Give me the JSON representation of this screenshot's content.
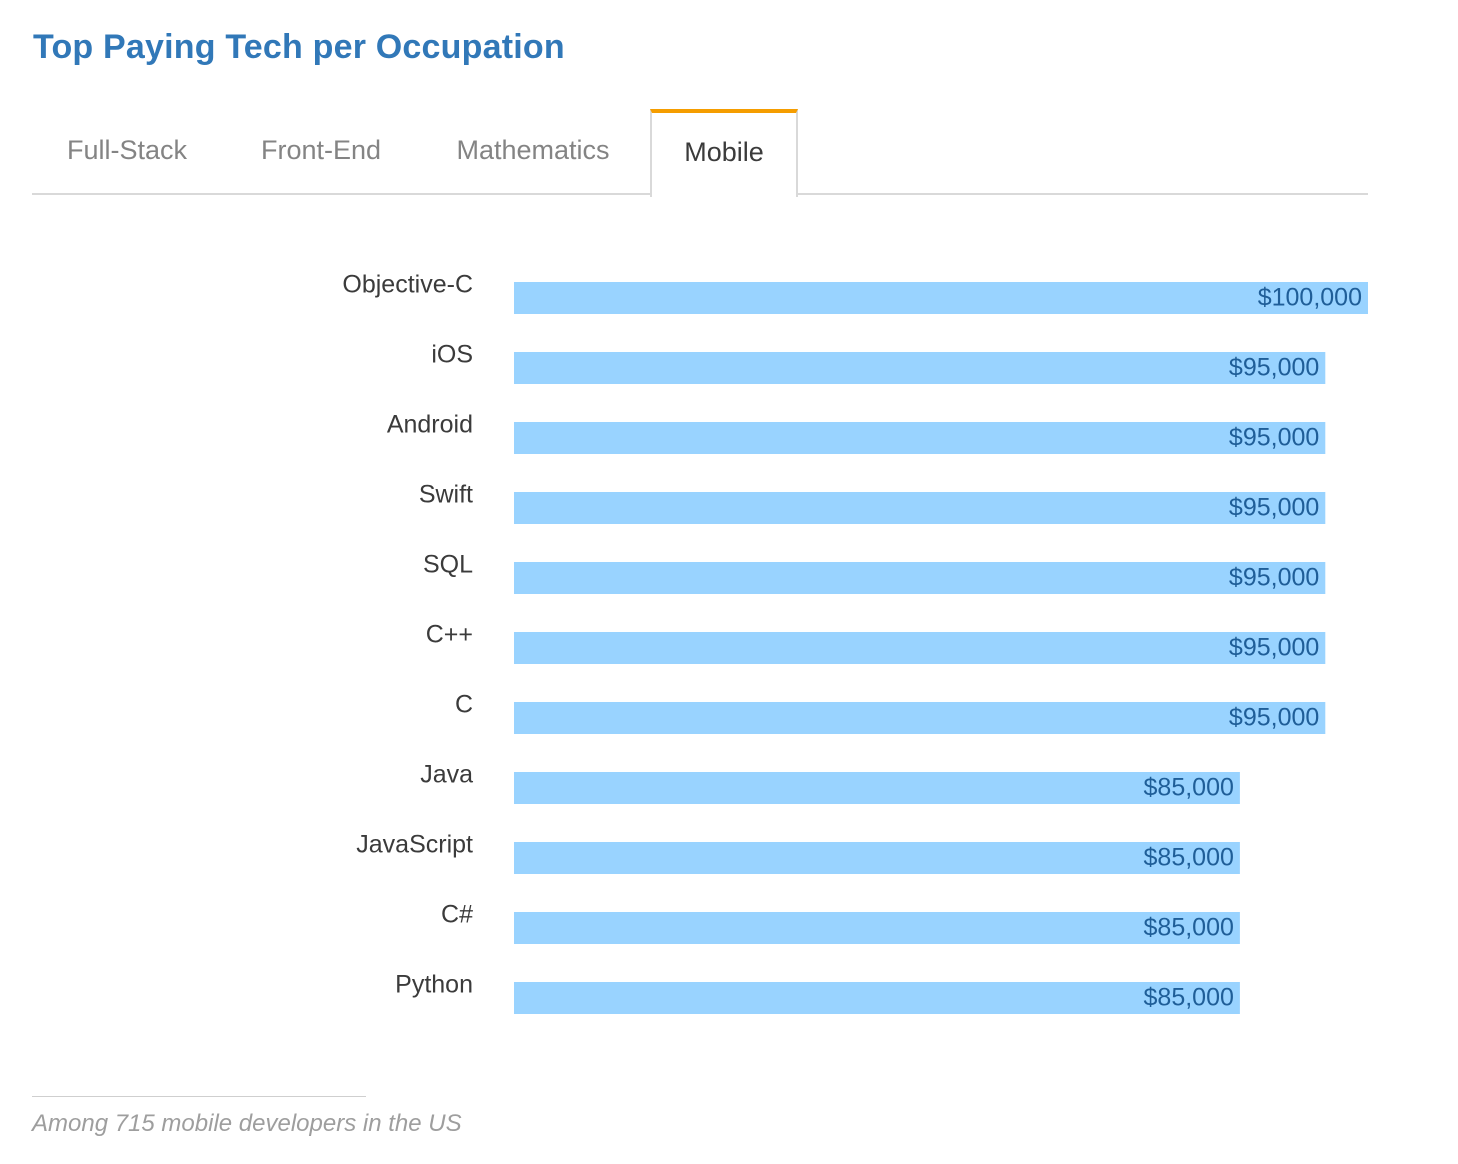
{
  "title": "Top Paying Tech per Occupation",
  "tabs": [
    {
      "label": "Full-Stack",
      "active": false
    },
    {
      "label": "Front-End",
      "active": false
    },
    {
      "label": "Mathematics",
      "active": false
    },
    {
      "label": "Mobile",
      "active": true
    }
  ],
  "colors": {
    "title": "#3178b8",
    "bar": "#99d3ff",
    "value_text": "#1f5e98",
    "active_tab_accent": "#f59d00"
  },
  "chart_data": {
    "type": "bar",
    "orientation": "horizontal",
    "categories": [
      "Objective-C",
      "iOS",
      "Android",
      "Swift",
      "SQL",
      "C++",
      "C",
      "Java",
      "JavaScript",
      "C#",
      "Python"
    ],
    "values": [
      100000,
      95000,
      95000,
      95000,
      95000,
      95000,
      95000,
      85000,
      85000,
      85000,
      85000
    ],
    "value_labels": [
      "$100,000",
      "$95,000",
      "$95,000",
      "$95,000",
      "$95,000",
      "$95,000",
      "$95,000",
      "$85,000",
      "$85,000",
      "$85,000",
      "$85,000"
    ],
    "title": "",
    "xlabel": "",
    "ylabel": "",
    "xlim": [
      0,
      100000
    ],
    "grid": false,
    "legend": "none"
  },
  "footnote": "Among 715 mobile developers in the US"
}
